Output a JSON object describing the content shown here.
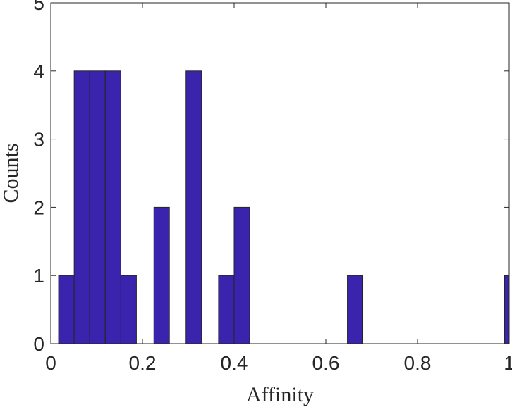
{
  "chart_data": {
    "type": "bar",
    "title": "",
    "xlabel": "Affinity",
    "ylabel": "Counts",
    "xlim": [
      0,
      1
    ],
    "ylim": [
      0,
      5
    ],
    "bin_width": 0.0338,
    "bins": [
      {
        "left": 0.017,
        "count": 1
      },
      {
        "left": 0.051,
        "count": 4
      },
      {
        "left": 0.085,
        "count": 4
      },
      {
        "left": 0.119,
        "count": 4
      },
      {
        "left": 0.153,
        "count": 1
      },
      {
        "left": 0.225,
        "count": 2
      },
      {
        "left": 0.295,
        "count": 4
      },
      {
        "left": 0.366,
        "count": 1
      },
      {
        "left": 0.4,
        "count": 2
      },
      {
        "left": 0.647,
        "count": 1
      },
      {
        "left": 0.99,
        "count": 1
      }
    ],
    "x_ticks": [
      {
        "value": 0,
        "label": "0"
      },
      {
        "value": 0.2,
        "label": "0.2"
      },
      {
        "value": 0.4,
        "label": "0.4"
      },
      {
        "value": 0.6,
        "label": "0.6"
      },
      {
        "value": 0.8,
        "label": "0.8"
      },
      {
        "value": 1,
        "label": "1"
      }
    ],
    "y_ticks": [
      {
        "value": 0,
        "label": "0"
      },
      {
        "value": 1,
        "label": "1"
      },
      {
        "value": 2,
        "label": "2"
      },
      {
        "value": 3,
        "label": "3"
      },
      {
        "value": 4,
        "label": "4"
      },
      {
        "value": 5,
        "label": "5"
      }
    ],
    "bar_color": "#3A24AD",
    "edge_color": "#262626",
    "grid": false,
    "box": true
  }
}
